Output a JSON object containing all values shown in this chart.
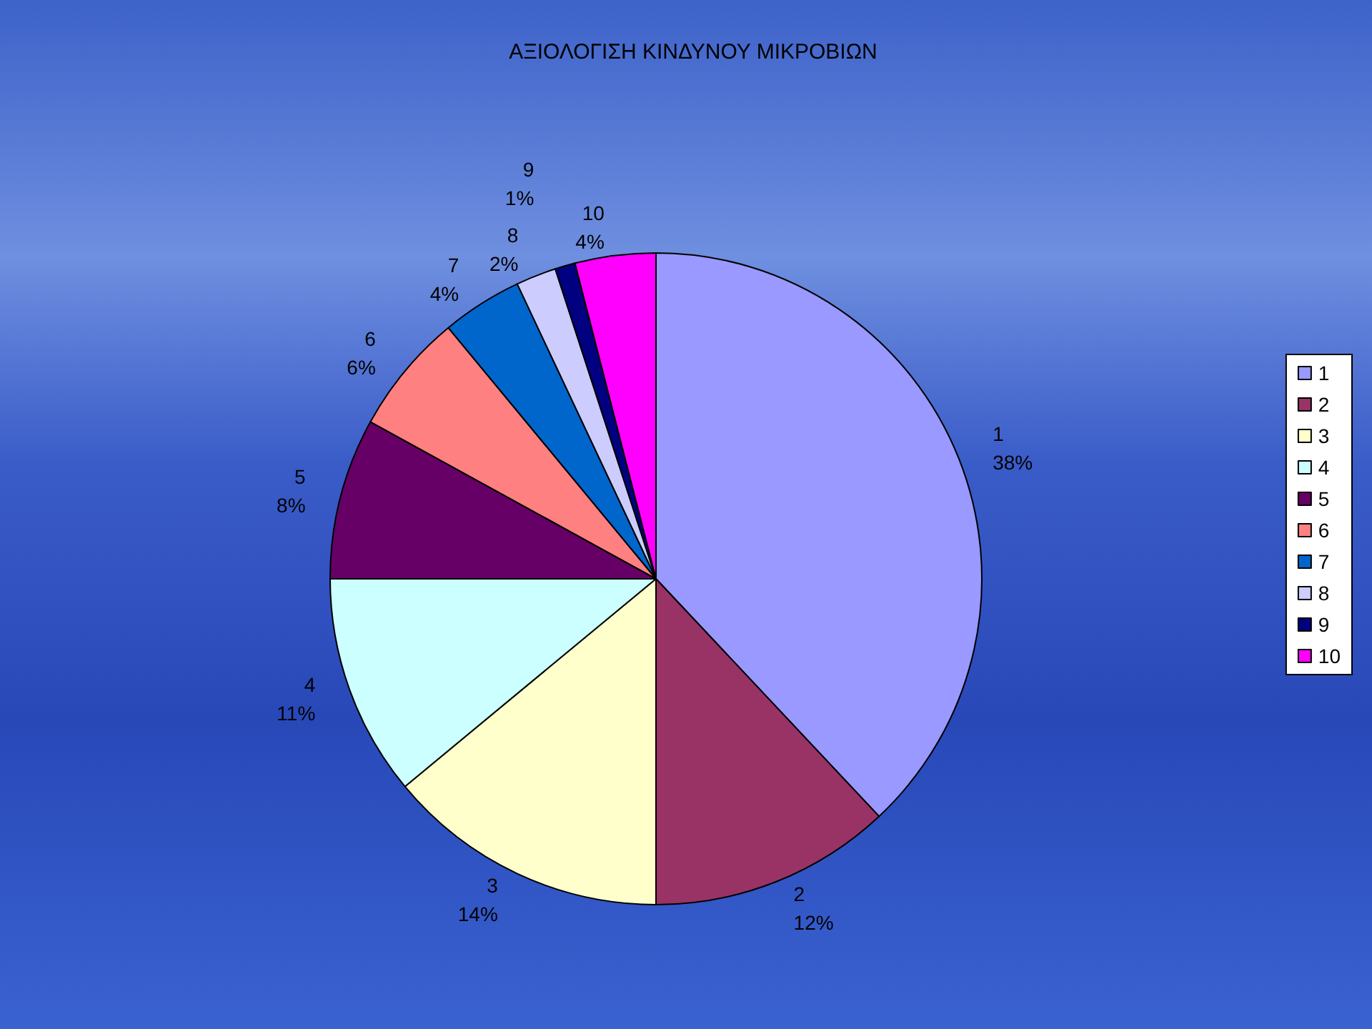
{
  "chart_data": {
    "type": "pie",
    "title": "ΑΞΙΟΛΟΓΙΣΗ ΚΙΝΔΥΝΟΥ ΜΙΚΡΟΒΙΩΝ",
    "categories": [
      "1",
      "2",
      "3",
      "4",
      "5",
      "6",
      "7",
      "8",
      "9",
      "10"
    ],
    "values": [
      38,
      12,
      14,
      11,
      8,
      6,
      4,
      2,
      1,
      4
    ],
    "value_labels": [
      "38%",
      "12%",
      "14%",
      "11%",
      "8%",
      "6%",
      "4%",
      "2%",
      "1%",
      "4%"
    ],
    "colors": [
      "#9999ff",
      "#993366",
      "#ffffcc",
      "#ccffff",
      "#660066",
      "#ff8080",
      "#0066cc",
      "#ccccff",
      "#000080",
      "#ff00ff"
    ],
    "legend": "right"
  }
}
